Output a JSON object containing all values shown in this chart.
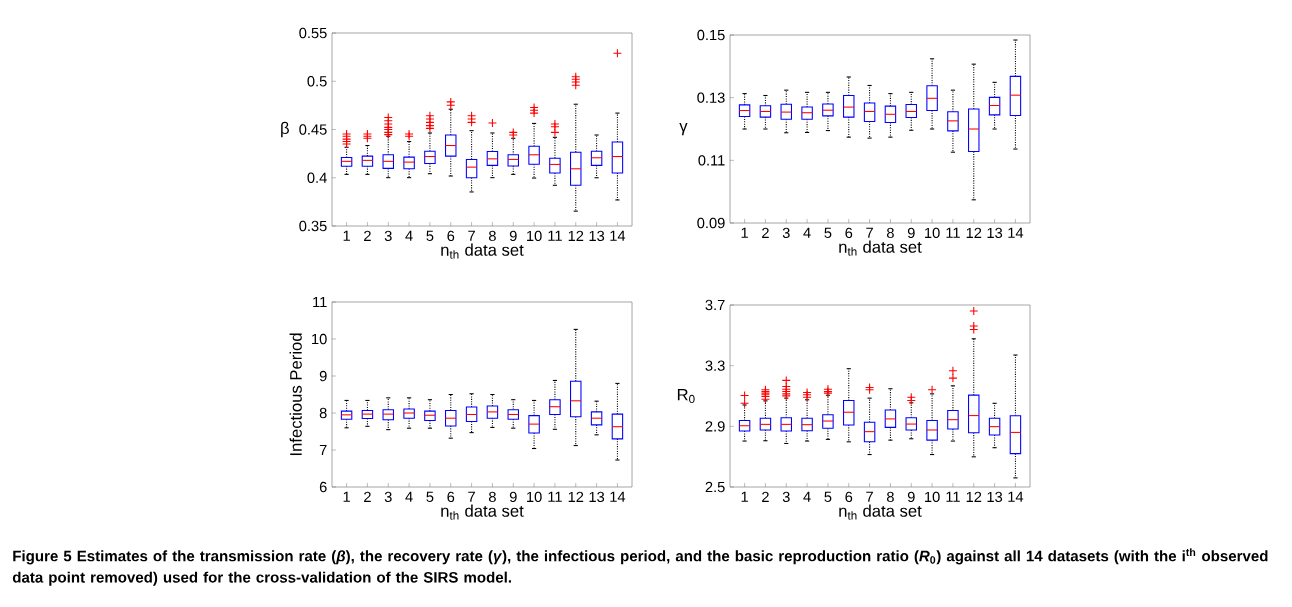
{
  "chart_data": [
    {
      "type": "box",
      "ylabel": "β",
      "xlabel": "n$_{th}$ data set",
      "color": "#0000ff",
      "categories": [
        "1",
        "2",
        "3",
        "4",
        "5",
        "6",
        "7",
        "8",
        "9",
        "10",
        "11",
        "12",
        "13",
        "14"
      ],
      "ylim": [
        0.35,
        0.55
      ],
      "yticks": [
        0.35,
        0.4,
        0.45,
        0.5,
        0.55
      ],
      "boxes": [
        {
          "low": 0.4035,
          "q1": 0.412,
          "median": 0.417,
          "q3": 0.421,
          "high": 0.4316,
          "outliers": [
            0.4454,
            0.443,
            0.44,
            0.4375,
            0.435
          ]
        },
        {
          "low": 0.4035,
          "q1": 0.412,
          "median": 0.418,
          "q3": 0.4224,
          "high": 0.4334,
          "outliers": [
            0.4454,
            0.443,
            0.441
          ]
        },
        {
          "low": 0.4001,
          "q1": 0.4097,
          "median": 0.417,
          "q3": 0.4238,
          "high": 0.443,
          "outliers": [
            0.4625,
            0.459,
            0.4557,
            0.4522,
            0.45,
            0.447,
            0.4447
          ]
        },
        {
          "low": 0.4001,
          "q1": 0.4093,
          "median": 0.4162,
          "q3": 0.4214,
          "high": 0.4375,
          "outliers": [
            0.4454,
            0.443
          ]
        },
        {
          "low": 0.4042,
          "q1": 0.4148,
          "median": 0.422,
          "q3": 0.4275,
          "high": 0.4464,
          "outliers": [
            0.4642,
            0.4608,
            0.4574,
            0.454,
            0.4512
          ]
        },
        {
          "low": 0.4018,
          "q1": 0.4224,
          "median": 0.4334,
          "q3": 0.4443,
          "high": 0.471,
          "outliers": [
            0.4786,
            0.4752
          ]
        },
        {
          "low": 0.3853,
          "q1": 0.4,
          "median": 0.411,
          "q3": 0.419,
          "high": 0.4488,
          "outliers": [
            0.4642,
            0.4608,
            0.4574
          ]
        },
        {
          "low": 0.4001,
          "q1": 0.4128,
          "median": 0.4196,
          "q3": 0.4272,
          "high": 0.4464,
          "outliers": [
            0.4567
          ]
        },
        {
          "low": 0.4035,
          "q1": 0.4121,
          "median": 0.419,
          "q3": 0.4238,
          "high": 0.4409,
          "outliers": [
            0.447,
            0.4443
          ]
        },
        {
          "low": 0.3997,
          "q1": 0.414,
          "median": 0.4238,
          "q3": 0.4327,
          "high": 0.4563,
          "outliers": [
            0.4728,
            0.47,
            0.467
          ]
        },
        {
          "low": 0.3922,
          "q1": 0.4049,
          "median": 0.4138,
          "q3": 0.4203,
          "high": 0.4419,
          "outliers": [
            0.4557,
            0.4529,
            0.447
          ]
        },
        {
          "low": 0.3654,
          "q1": 0.3922,
          "median": 0.4093,
          "q3": 0.4265,
          "high": 0.4762,
          "outliers": [
            0.5047,
            0.502,
            0.4992,
            0.4958
          ]
        },
        {
          "low": 0.4,
          "q1": 0.4128,
          "median": 0.4207,
          "q3": 0.4275,
          "high": 0.4443
        },
        {
          "low": 0.377,
          "q1": 0.405,
          "median": 0.422,
          "q3": 0.437,
          "high": 0.467,
          "outliers": [
            0.529
          ]
        }
      ]
    },
    {
      "type": "box",
      "ylabel": "γ",
      "xlabel": "n$_{th}$ data set",
      "color": "#0000ff",
      "categories": [
        "1",
        "2",
        "3",
        "4",
        "5",
        "6",
        "7",
        "8",
        "9",
        "10",
        "11",
        "12",
        "13",
        "14"
      ],
      "ylim": [
        0.09,
        0.15
      ],
      "yticks": [
        0.09,
        0.11,
        0.13,
        0.15
      ],
      "boxes": [
        {
          "low": 0.12,
          "q1": 0.124,
          "median": 0.1259,
          "q3": 0.1277,
          "high": 0.1313
        },
        {
          "low": 0.12,
          "q1": 0.1238,
          "median": 0.1256,
          "q3": 0.1274,
          "high": 0.1307
        },
        {
          "low": 0.1188,
          "q1": 0.1231,
          "median": 0.1254,
          "q3": 0.1279,
          "high": 0.1324
        },
        {
          "low": 0.1189,
          "q1": 0.1231,
          "median": 0.1252,
          "q3": 0.127,
          "high": 0.1317
        },
        {
          "low": 0.1195,
          "q1": 0.1242,
          "median": 0.126,
          "q3": 0.128,
          "high": 0.1317
        },
        {
          "low": 0.1174,
          "q1": 0.1238,
          "median": 0.127,
          "q3": 0.1307,
          "high": 0.1366
        },
        {
          "low": 0.1171,
          "q1": 0.1224,
          "median": 0.1256,
          "q3": 0.1283,
          "high": 0.1339
        },
        {
          "low": 0.1174,
          "q1": 0.1221,
          "median": 0.1247,
          "q3": 0.1273,
          "high": 0.1313
        },
        {
          "low": 0.1196,
          "q1": 0.1237,
          "median": 0.1256,
          "q3": 0.1278,
          "high": 0.1317
        },
        {
          "low": 0.12,
          "q1": 0.1259,
          "median": 0.1298,
          "q3": 0.1338,
          "high": 0.1424
        },
        {
          "low": 0.1126,
          "q1": 0.1194,
          "median": 0.1226,
          "q3": 0.1255,
          "high": 0.1324
        },
        {
          "low": 0.0974,
          "q1": 0.1128,
          "median": 0.12,
          "q3": 0.1264,
          "high": 0.1407
        },
        {
          "low": 0.12,
          "q1": 0.1245,
          "median": 0.1275,
          "q3": 0.1301,
          "high": 0.1349
        },
        {
          "low": 0.1136,
          "q1": 0.1243,
          "median": 0.1308,
          "q3": 0.1368,
          "high": 0.1484
        }
      ]
    },
    {
      "type": "box",
      "ylabel": "Infectious Period",
      "xlabel": "n$_{th}$ data set",
      "color": "#0000ff",
      "categories": [
        "1",
        "2",
        "3",
        "4",
        "5",
        "6",
        "7",
        "8",
        "9",
        "10",
        "11",
        "12",
        "13",
        "14"
      ],
      "ylim": [
        6,
        11
      ],
      "yticks": [
        6,
        7,
        8,
        9,
        10,
        11
      ],
      "boxes": [
        {
          "low": 7.6,
          "q1": 7.83,
          "median": 7.95,
          "q3": 8.05,
          "high": 8.34
        },
        {
          "low": 7.64,
          "q1": 7.85,
          "median": 7.97,
          "q3": 8.07,
          "high": 8.34
        },
        {
          "low": 7.55,
          "q1": 7.82,
          "median": 7.97,
          "q3": 8.09,
          "high": 8.41
        },
        {
          "low": 7.59,
          "q1": 7.86,
          "median": 8.0,
          "q3": 8.11,
          "high": 8.41
        },
        {
          "low": 7.59,
          "q1": 7.8,
          "median": 7.94,
          "q3": 8.05,
          "high": 8.36
        },
        {
          "low": 7.32,
          "q1": 7.65,
          "median": 7.86,
          "q3": 8.07,
          "high": 8.5
        },
        {
          "low": 7.47,
          "q1": 7.77,
          "median": 7.96,
          "q3": 8.16,
          "high": 8.52
        },
        {
          "low": 7.61,
          "q1": 7.86,
          "median": 8.03,
          "q3": 8.19,
          "high": 8.5
        },
        {
          "low": 7.59,
          "q1": 7.83,
          "median": 7.96,
          "q3": 8.09,
          "high": 8.36
        },
        {
          "low": 7.04,
          "q1": 7.46,
          "median": 7.7,
          "q3": 7.93,
          "high": 8.34
        },
        {
          "low": 7.56,
          "q1": 7.96,
          "median": 8.17,
          "q3": 8.36,
          "high": 8.88
        },
        {
          "low": 7.12,
          "q1": 7.9,
          "median": 8.33,
          "q3": 8.86,
          "high": 10.26
        },
        {
          "low": 7.41,
          "q1": 7.68,
          "median": 7.86,
          "q3": 8.03,
          "high": 8.32
        },
        {
          "low": 6.73,
          "q1": 7.3,
          "median": 7.63,
          "q3": 7.97,
          "high": 8.8
        }
      ]
    },
    {
      "type": "box",
      "ylabel": "R$_{0}$",
      "xlabel": "n$_{th}$ data set",
      "color": "#0000ff",
      "categories": [
        "1",
        "2",
        "3",
        "4",
        "5",
        "6",
        "7",
        "8",
        "9",
        "10",
        "11",
        "12",
        "13",
        "14"
      ],
      "ylim": [
        2.5,
        3.7
      ],
      "yticks": [
        2.5,
        2.9,
        3.3,
        3.7
      ],
      "boxes": [
        {
          "low": 2.803,
          "q1": 2.869,
          "median": 2.904,
          "q3": 2.938,
          "high": 3.041,
          "outliers": [
            3.103,
            3.052
          ]
        },
        {
          "low": 2.805,
          "q1": 2.876,
          "median": 2.913,
          "q3": 2.953,
          "high": 3.068,
          "outliers": [
            3.141,
            3.13,
            3.119,
            3.108,
            3.097,
            3.079
          ]
        },
        {
          "low": 2.787,
          "q1": 2.869,
          "median": 2.913,
          "q3": 2.957,
          "high": 3.086,
          "outliers": [
            3.203,
            3.163,
            3.145,
            3.13,
            3.114,
            3.101
          ]
        },
        {
          "low": 2.803,
          "q1": 2.871,
          "median": 2.911,
          "q3": 2.953,
          "high": 3.075,
          "outliers": [
            3.123,
            3.108,
            3.092
          ]
        },
        {
          "low": 2.814,
          "q1": 2.887,
          "median": 2.935,
          "q3": 2.977,
          "high": 3.105,
          "outliers": [
            3.145,
            3.13,
            3.119
          ]
        },
        {
          "low": 2.798,
          "q1": 2.909,
          "median": 2.993,
          "q3": 3.07,
          "high": 3.28
        },
        {
          "low": 2.714,
          "q1": 2.798,
          "median": 2.865,
          "q3": 2.927,
          "high": 3.086,
          "outliers": [
            3.156,
            3.141
          ]
        },
        {
          "low": 2.809,
          "q1": 2.893,
          "median": 2.949,
          "q3": 3.008,
          "high": 3.148
        },
        {
          "low": 2.818,
          "q1": 2.876,
          "median": 2.915,
          "q3": 2.957,
          "high": 3.055,
          "outliers": [
            3.092,
            3.07
          ]
        },
        {
          "low": 2.714,
          "q1": 2.809,
          "median": 2.876,
          "q3": 2.938,
          "high": 3.114,
          "outliers": [
            3.141
          ]
        },
        {
          "low": 2.803,
          "q1": 2.882,
          "median": 2.944,
          "q3": 3.004,
          "high": 3.167,
          "outliers": [
            3.267,
            3.218
          ]
        },
        {
          "low": 2.699,
          "q1": 2.858,
          "median": 2.971,
          "q3": 3.106,
          "high": 3.477,
          "outliers": [
            3.66,
            3.561,
            3.539
          ]
        },
        {
          "low": 2.759,
          "q1": 2.843,
          "median": 2.898,
          "q3": 2.953,
          "high": 3.052
        },
        {
          "low": 2.56,
          "q1": 2.72,
          "median": 2.86,
          "q3": 2.97,
          "high": 3.37
        }
      ],
      "annotations": [
        "**Figure 5** Estimates of the transmission rate (*β*), the recovery rate (*γ*), the infectious period, and the basic reproduction ratio (*R*$_{0}$) against all 14 datasets (with the i$^{th}$ observed data point removed) used for the cross-validation of the SIRS model."
      ]
    }
  ]
}
